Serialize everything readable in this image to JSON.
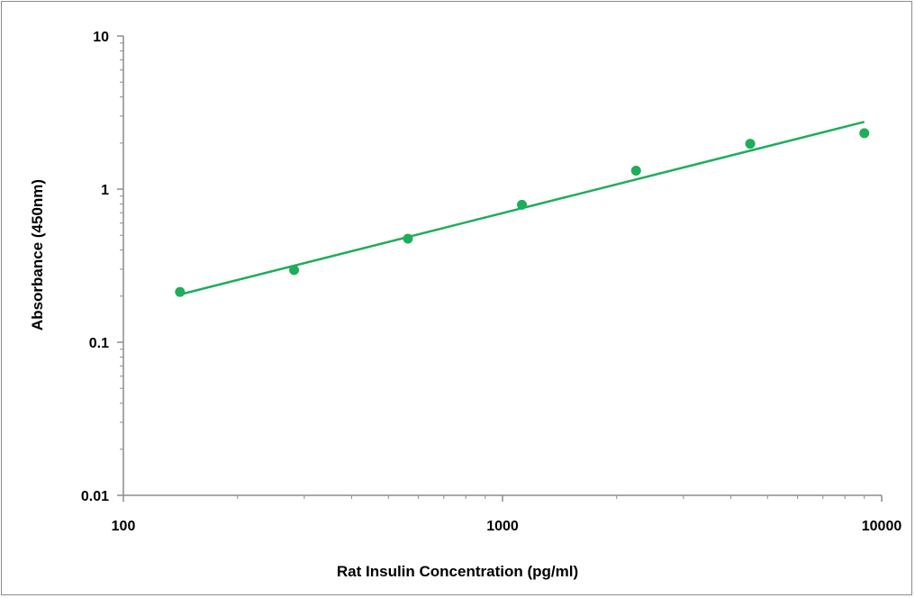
{
  "chart_data": {
    "type": "scatter",
    "title": "",
    "xlabel": "Rat Insulin Concentration (pg/ml)",
    "ylabel": "Absorbance (450nm)",
    "x_scale": "log",
    "y_scale": "log",
    "xlim": [
      100,
      10000
    ],
    "ylim": [
      0.01,
      10
    ],
    "x_ticks": [
      {
        "value": 100,
        "label": "100"
      },
      {
        "value": 1000,
        "label": "1000"
      },
      {
        "value": 10000,
        "label": "10000"
      }
    ],
    "y_ticks": [
      {
        "value": 0.01,
        "label": "0.01"
      },
      {
        "value": 0.1,
        "label": "0.1"
      },
      {
        "value": 1,
        "label": "1"
      },
      {
        "value": 10,
        "label": "10"
      }
    ],
    "grid": false,
    "legend": "none",
    "color": "#1fad5b",
    "series": [
      {
        "points": [
          {
            "x": 141,
            "y": 0.213
          },
          {
            "x": 282,
            "y": 0.296
          },
          {
            "x": 563,
            "y": 0.475
          },
          {
            "x": 1125,
            "y": 0.79
          },
          {
            "x": 2250,
            "y": 1.32
          },
          {
            "x": 4500,
            "y": 1.98
          },
          {
            "x": 9000,
            "y": 2.32
          }
        ]
      }
    ],
    "trendline": {
      "type": "power",
      "from": {
        "x": 141,
        "y": 0.205
      },
      "to": {
        "x": 9000,
        "y": 2.75
      }
    }
  }
}
